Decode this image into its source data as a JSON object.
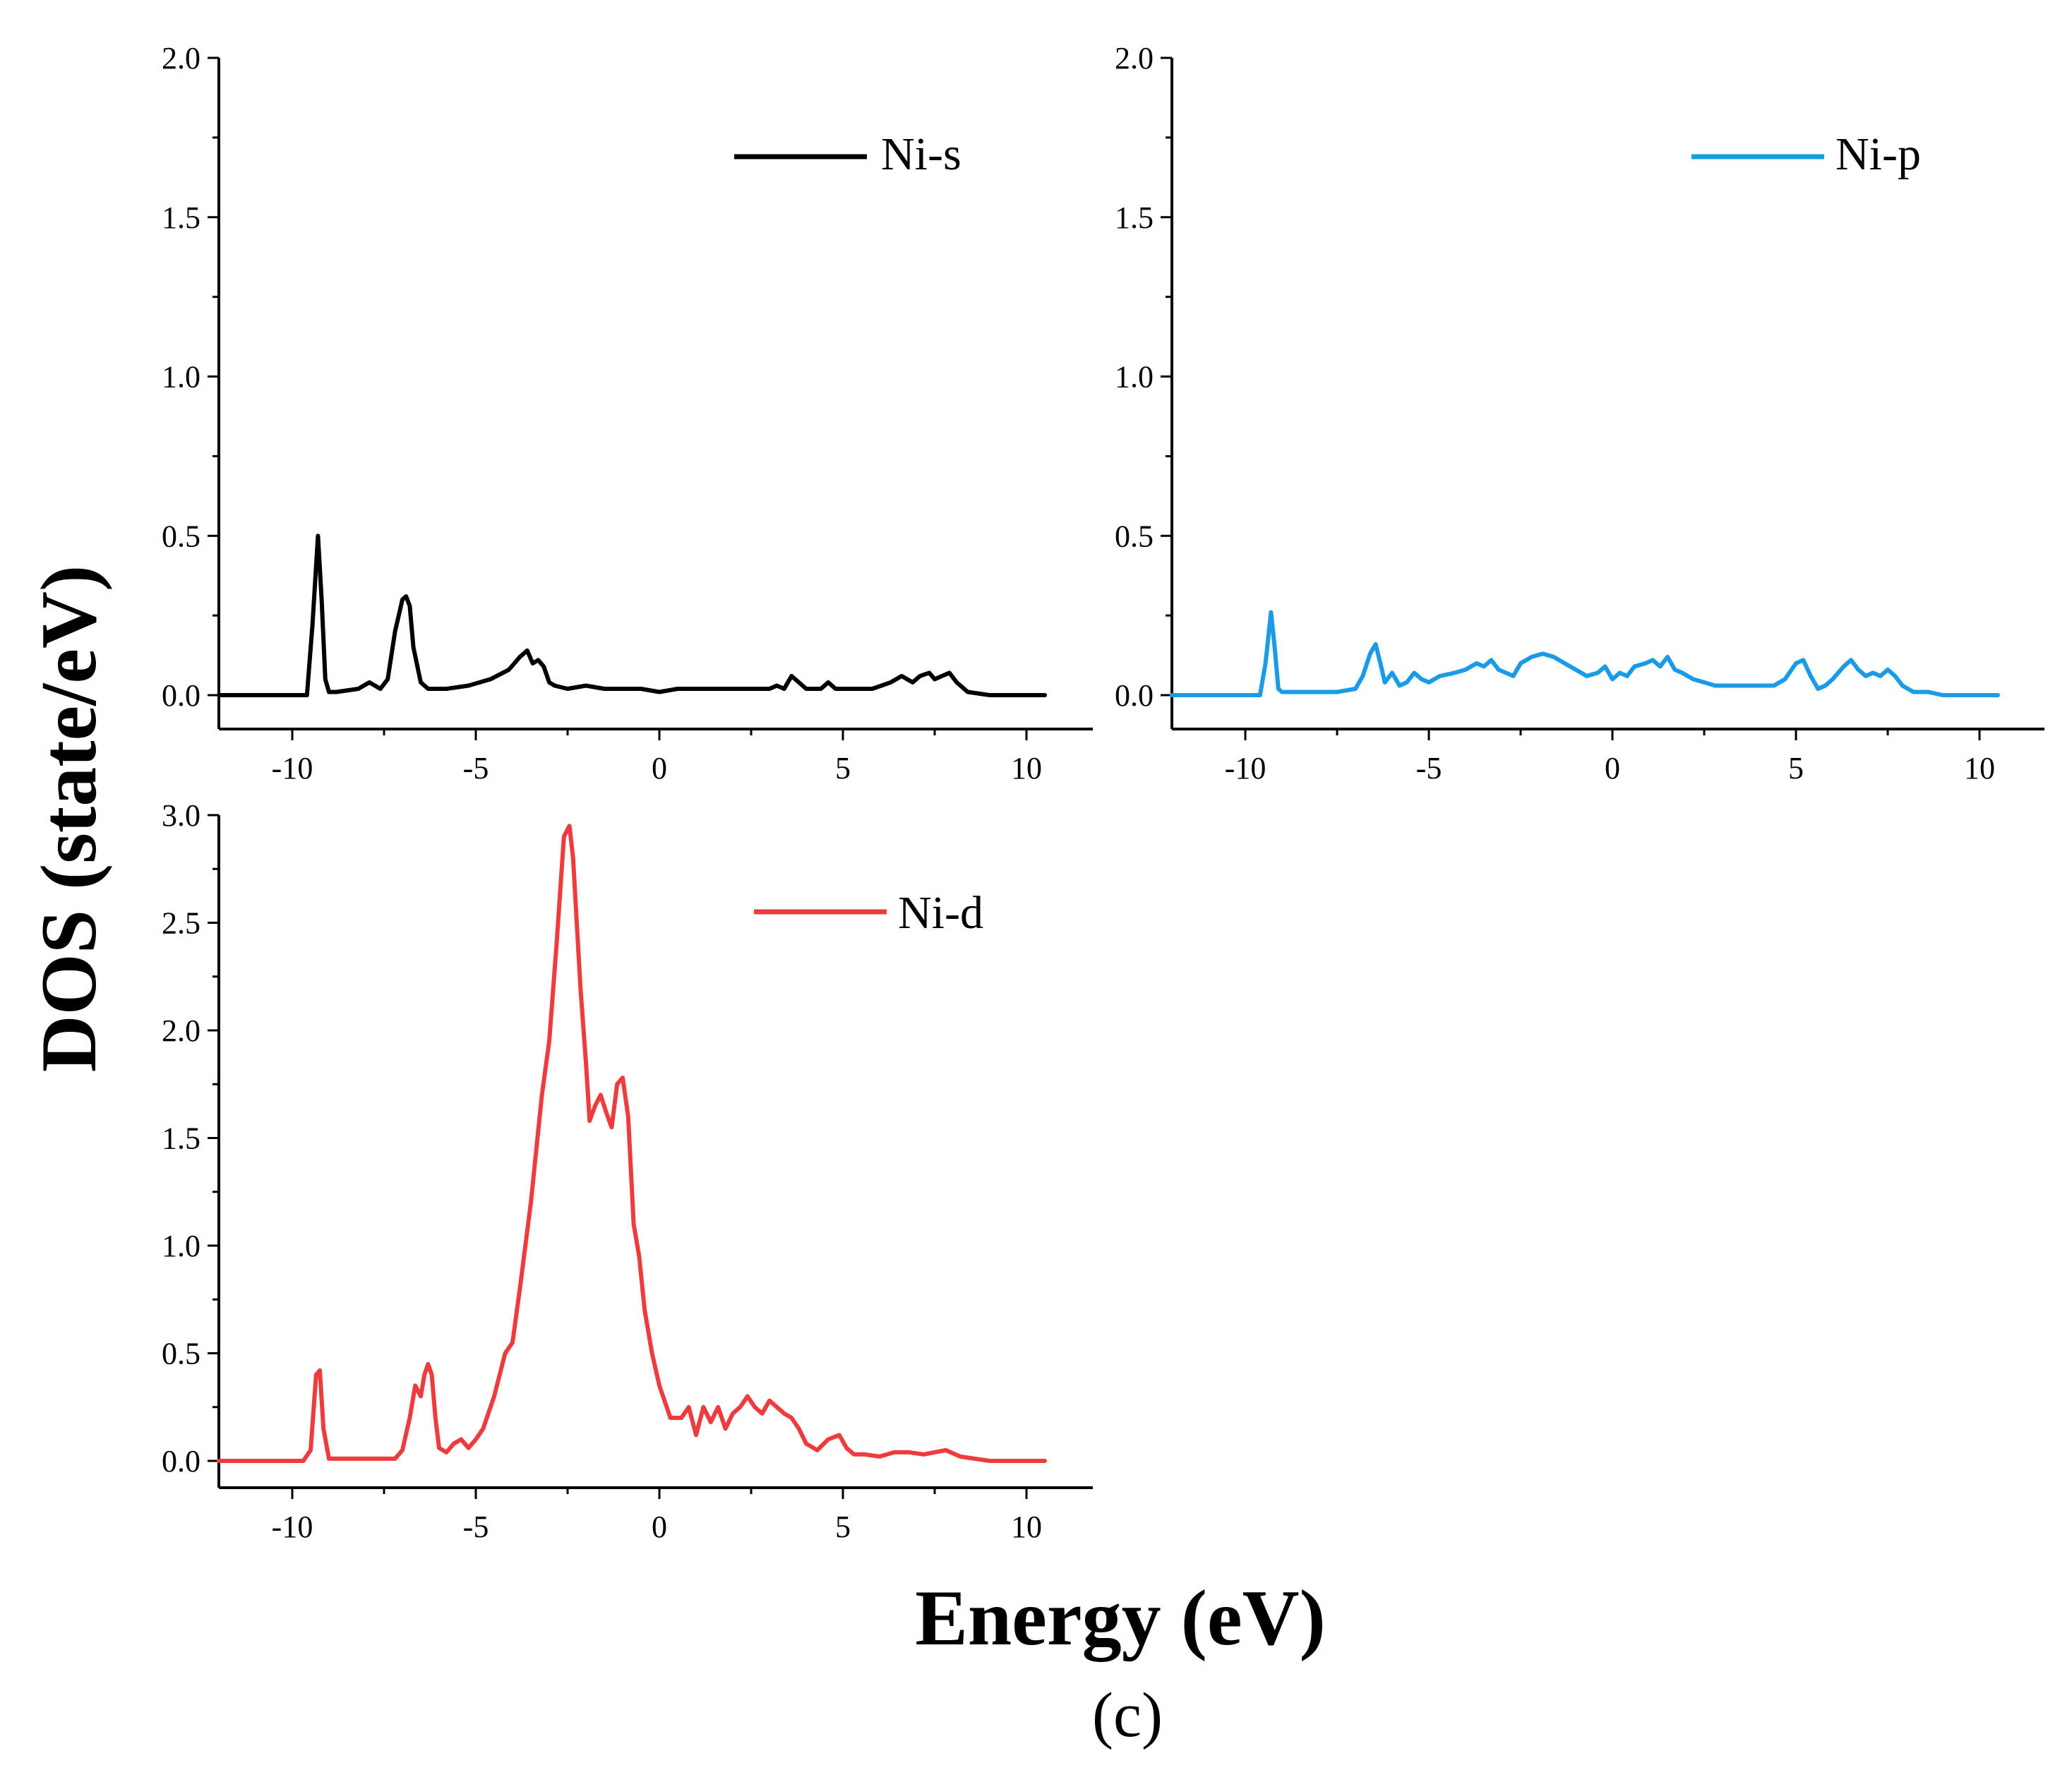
{
  "figure": {
    "ylabel": "DOS (state/eV)",
    "xlabel": "Energy (eV)",
    "caption": "(c)"
  },
  "chart_data": [
    {
      "type": "line",
      "id": "panel_s",
      "series": [
        {
          "name": "Ni-s",
          "color": "#000000",
          "x": [
            -12,
            -10,
            -9.6,
            -9.45,
            -9.3,
            -9.2,
            -9.1,
            -9.0,
            -8.8,
            -8.2,
            -7.9,
            -7.6,
            -7.4,
            -7.2,
            -7.0,
            -6.9,
            -6.8,
            -6.7,
            -6.5,
            -6.3,
            -6.1,
            -5.8,
            -5.2,
            -4.6,
            -4.1,
            -3.8,
            -3.6,
            -3.45,
            -3.3,
            -3.15,
            -3.0,
            -2.85,
            -2.5,
            -2.0,
            -1.5,
            -1.0,
            -0.5,
            0,
            0.5,
            1.0,
            1.5,
            2.0,
            2.5,
            3.0,
            3.2,
            3.4,
            3.6,
            3.8,
            4.0,
            4.4,
            4.6,
            4.8,
            5.2,
            5.8,
            6.3,
            6.6,
            6.9,
            7.1,
            7.35,
            7.5,
            7.7,
            7.9,
            8.1,
            8.4,
            9,
            10,
            10.5
          ],
          "y": [
            0,
            0,
            0,
            0.22,
            0.5,
            0.3,
            0.05,
            0.01,
            0.01,
            0.02,
            0.04,
            0.02,
            0.05,
            0.2,
            0.3,
            0.31,
            0.28,
            0.15,
            0.04,
            0.02,
            0.02,
            0.02,
            0.03,
            0.05,
            0.08,
            0.12,
            0.14,
            0.1,
            0.11,
            0.09,
            0.04,
            0.03,
            0.02,
            0.03,
            0.02,
            0.02,
            0.02,
            0.01,
            0.02,
            0.02,
            0.02,
            0.02,
            0.02,
            0.02,
            0.03,
            0.02,
            0.06,
            0.04,
            0.02,
            0.02,
            0.04,
            0.02,
            0.02,
            0.02,
            0.04,
            0.06,
            0.04,
            0.06,
            0.07,
            0.05,
            0.06,
            0.07,
            0.04,
            0.01,
            0,
            0,
            0
          ]
        }
      ],
      "xlim": [
        -12,
        12
      ],
      "ylim": [
        -0.1,
        2.0
      ],
      "xticks": [
        -10,
        -5,
        0,
        5,
        10
      ],
      "xtick_labels": [
        "-10",
        "-5",
        "0",
        "5",
        "10"
      ],
      "yticks": [
        0.0,
        0.5,
        1.0,
        1.5,
        2.0
      ],
      "ytick_labels": [
        "0.0",
        "0.5",
        "1.0",
        "1.5",
        "2.0"
      ],
      "legend": "Ni-s",
      "legend_position": "top-right"
    },
    {
      "type": "line",
      "id": "panel_p",
      "series": [
        {
          "name": "Ni-p",
          "color": "#1a9be8",
          "x": [
            -12,
            -10,
            -9.6,
            -9.45,
            -9.3,
            -9.2,
            -9.1,
            -9.0,
            -8.5,
            -7.5,
            -7.0,
            -6.8,
            -6.6,
            -6.45,
            -6.3,
            -6.2,
            -6.0,
            -5.8,
            -5.6,
            -5.4,
            -5.2,
            -5.0,
            -4.7,
            -4.3,
            -4.0,
            -3.7,
            -3.5,
            -3.3,
            -3.1,
            -2.9,
            -2.7,
            -2.5,
            -2.2,
            -1.9,
            -1.6,
            -1.3,
            -1.0,
            -0.7,
            -0.4,
            -0.2,
            0,
            0.2,
            0.4,
            0.6,
            0.9,
            1.1,
            1.3,
            1.5,
            1.7,
            1.9,
            2.2,
            2.5,
            2.8,
            3.0,
            3.5,
            4.0,
            4.4,
            4.7,
            5.0,
            5.2,
            5.4,
            5.6,
            5.8,
            6.0,
            6.3,
            6.5,
            6.7,
            6.9,
            7.1,
            7.3,
            7.5,
            7.7,
            7.9,
            8.2,
            8.6,
            9,
            10,
            10.5
          ],
          "y": [
            0,
            0,
            0,
            0.1,
            0.26,
            0.15,
            0.02,
            0.01,
            0.01,
            0.01,
            0.02,
            0.06,
            0.13,
            0.16,
            0.09,
            0.04,
            0.07,
            0.03,
            0.04,
            0.07,
            0.05,
            0.04,
            0.06,
            0.07,
            0.08,
            0.1,
            0.09,
            0.11,
            0.08,
            0.07,
            0.06,
            0.1,
            0.12,
            0.13,
            0.12,
            0.1,
            0.08,
            0.06,
            0.07,
            0.09,
            0.05,
            0.07,
            0.06,
            0.09,
            0.1,
            0.11,
            0.09,
            0.12,
            0.08,
            0.07,
            0.05,
            0.04,
            0.03,
            0.03,
            0.03,
            0.03,
            0.03,
            0.05,
            0.1,
            0.11,
            0.06,
            0.02,
            0.03,
            0.05,
            0.09,
            0.11,
            0.08,
            0.06,
            0.07,
            0.06,
            0.08,
            0.06,
            0.03,
            0.01,
            0.01,
            0,
            0,
            0
          ]
        }
      ],
      "xlim": [
        -12,
        12
      ],
      "ylim": [
        -0.1,
        2.0
      ],
      "xticks": [
        -10,
        -5,
        0,
        5,
        10
      ],
      "xtick_labels": [
        "-10",
        "-5",
        "0",
        "5",
        "10"
      ],
      "yticks": [
        0.0,
        0.5,
        1.0,
        1.5,
        2.0
      ],
      "ytick_labels": [
        "0.0",
        "0.5",
        "1.0",
        "1.5",
        "2.0"
      ],
      "legend": "Ni-p",
      "legend_position": "top-right"
    },
    {
      "type": "line",
      "id": "panel_d",
      "series": [
        {
          "name": "Ni-d",
          "color": "#ef3b3b",
          "x": [
            -12,
            -10,
            -9.7,
            -9.5,
            -9.35,
            -9.25,
            -9.15,
            -9.0,
            -8.8,
            -8.0,
            -7.2,
            -7.0,
            -6.8,
            -6.65,
            -6.5,
            -6.4,
            -6.3,
            -6.2,
            -6.1,
            -6.0,
            -5.8,
            -5.6,
            -5.4,
            -5.2,
            -5.0,
            -4.8,
            -4.5,
            -4.2,
            -4.0,
            -3.8,
            -3.5,
            -3.2,
            -3.0,
            -2.8,
            -2.6,
            -2.45,
            -2.35,
            -2.25,
            -2.15,
            -2.0,
            -1.9,
            -1.75,
            -1.6,
            -1.45,
            -1.3,
            -1.15,
            -1.0,
            -0.85,
            -0.7,
            -0.55,
            -0.4,
            -0.2,
            0,
            0.3,
            0.6,
            0.8,
            1.0,
            1.2,
            1.4,
            1.6,
            1.8,
            2.0,
            2.2,
            2.4,
            2.6,
            2.8,
            3.0,
            3.2,
            3.4,
            3.6,
            3.8,
            4.0,
            4.3,
            4.6,
            4.9,
            5.1,
            5.3,
            5.6,
            6.0,
            6.4,
            6.8,
            7.2,
            7.5,
            7.8,
            8.2,
            9,
            10,
            10.5
          ],
          "y": [
            0,
            0,
            0,
            0.05,
            0.4,
            0.42,
            0.15,
            0.01,
            0.01,
            0.01,
            0.01,
            0.05,
            0.2,
            0.35,
            0.3,
            0.4,
            0.45,
            0.4,
            0.2,
            0.06,
            0.04,
            0.08,
            0.1,
            0.06,
            0.1,
            0.15,
            0.3,
            0.5,
            0.55,
            0.8,
            1.2,
            1.7,
            1.95,
            2.4,
            2.9,
            2.95,
            2.8,
            2.5,
            2.2,
            1.85,
            1.58,
            1.65,
            1.7,
            1.62,
            1.55,
            1.75,
            1.78,
            1.6,
            1.1,
            0.95,
            0.7,
            0.5,
            0.35,
            0.2,
            0.2,
            0.25,
            0.12,
            0.25,
            0.18,
            0.25,
            0.15,
            0.22,
            0.25,
            0.3,
            0.25,
            0.22,
            0.28,
            0.25,
            0.22,
            0.2,
            0.15,
            0.08,
            0.05,
            0.1,
            0.12,
            0.06,
            0.03,
            0.03,
            0.02,
            0.04,
            0.04,
            0.03,
            0.04,
            0.05,
            0.02,
            0,
            0,
            0
          ]
        }
      ],
      "xlim": [
        -12,
        12
      ],
      "ylim": [
        -0.1,
        3.0
      ],
      "xticks": [
        -10,
        -5,
        0,
        5,
        10
      ],
      "xtick_labels": [
        "-10",
        "-5",
        "0",
        "5",
        "10"
      ],
      "yticks": [
        0.0,
        0.5,
        1.0,
        1.5,
        2.0,
        2.5,
        3.0
      ],
      "ytick_labels": [
        "0.0",
        "0.5",
        "1.0",
        "1.5",
        "2.0",
        "2.5",
        "3.0"
      ],
      "legend": "Ni-d",
      "legend_position": "top-right"
    }
  ]
}
